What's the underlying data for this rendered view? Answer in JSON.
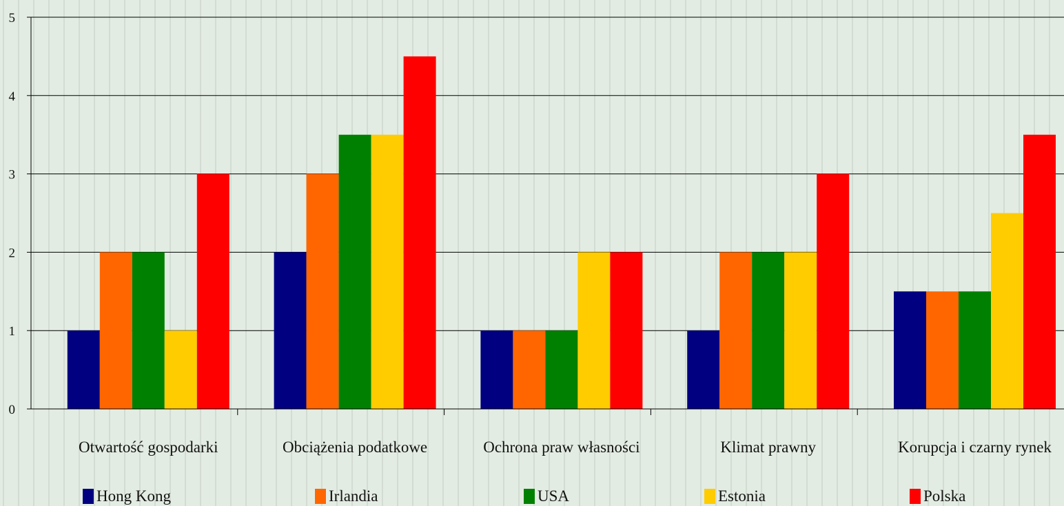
{
  "chart_data": {
    "type": "bar",
    "categories": [
      "Otwartość gospodarki",
      "Obciążenia podatkowe",
      "Ochrona praw własności",
      "Klimat prawny",
      "Korupcja i czarny rynek"
    ],
    "series": [
      {
        "name": "Hong Kong",
        "color": "#000080",
        "values": [
          1,
          2,
          1,
          1,
          1.5
        ]
      },
      {
        "name": "Irlandia",
        "color": "#ff6600",
        "values": [
          2,
          3,
          1,
          2,
          1.5
        ]
      },
      {
        "name": "USA",
        "color": "#008000",
        "values": [
          2,
          3.5,
          1,
          2,
          1.5
        ]
      },
      {
        "name": "Estonia",
        "color": "#ffcc00",
        "values": [
          1,
          3.5,
          2,
          2,
          2.5
        ]
      },
      {
        "name": "Polska",
        "color": "#ff0000",
        "values": [
          3,
          4.5,
          2,
          3,
          3.5
        ]
      }
    ],
    "yticks": [
      "0",
      "1",
      "2",
      "3",
      "4",
      "5"
    ],
    "ylim": [
      0,
      5
    ],
    "grid": true,
    "legend_position": "bottom",
    "title": "",
    "xlabel": "",
    "ylabel": ""
  }
}
